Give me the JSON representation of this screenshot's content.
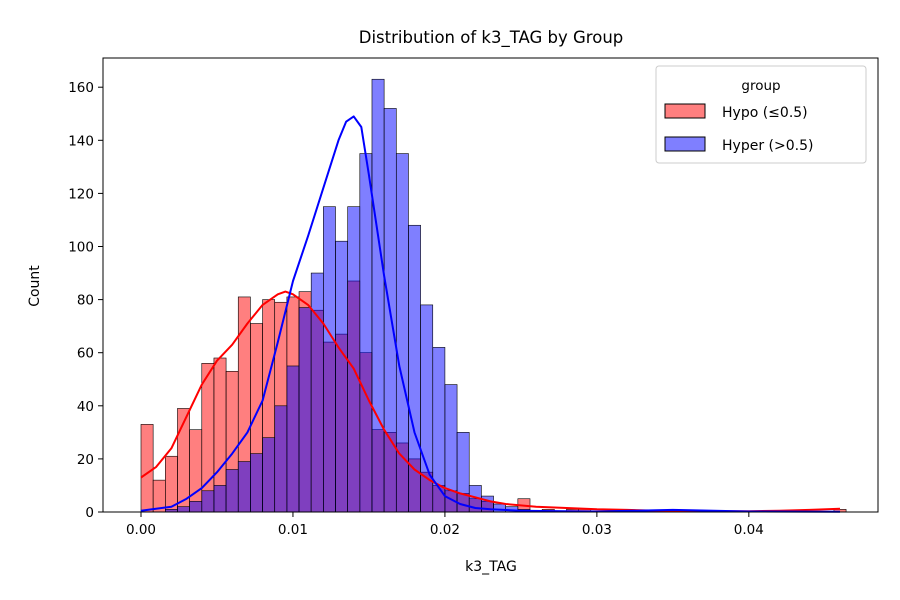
{
  "chart_data": {
    "type": "histogram",
    "title": "Distribution of k3_TAG by Group",
    "xlabel": "k3_TAG",
    "ylabel": "Count",
    "xlim": [
      -0.0025,
      0.0485
    ],
    "ylim": [
      0,
      171
    ],
    "x_ticks": [
      0.0,
      0.01,
      0.02,
      0.03,
      0.04
    ],
    "x_tick_labels": [
      "0.00",
      "0.01",
      "0.02",
      "0.03",
      "0.04"
    ],
    "y_ticks": [
      0,
      20,
      40,
      60,
      80,
      100,
      120,
      140,
      160
    ],
    "y_tick_labels": [
      "0",
      "20",
      "40",
      "60",
      "80",
      "100",
      "120",
      "140",
      "160"
    ],
    "bin_start": 0.0,
    "bin_width": 0.0008,
    "grid": false,
    "legend": {
      "title": "group",
      "placement": "top-right"
    },
    "series": [
      {
        "name": "Hypo (≤0.5)",
        "color": "#ff0000",
        "fill_alpha": 0.5,
        "counts": [
          33,
          12,
          21,
          39,
          31,
          56,
          58,
          53,
          81,
          71,
          80,
          79,
          81,
          83,
          76,
          64,
          67,
          87,
          60,
          31,
          30,
          26,
          20,
          15,
          10,
          8,
          7,
          5,
          4,
          0,
          0,
          5,
          0,
          1,
          0,
          1,
          1,
          0,
          0,
          0,
          0,
          0,
          0,
          0,
          0,
          0,
          0,
          0,
          0,
          0,
          0,
          0,
          0,
          0,
          0,
          0,
          0,
          1
        ],
        "kde": {
          "x": [
            0.0,
            0.001,
            0.002,
            0.003,
            0.004,
            0.005,
            0.006,
            0.007,
            0.008,
            0.009,
            0.0095,
            0.01,
            0.011,
            0.012,
            0.013,
            0.014,
            0.015,
            0.016,
            0.017,
            0.018,
            0.019,
            0.02,
            0.021,
            0.022,
            0.023,
            0.024,
            0.026,
            0.028,
            0.03,
            0.032,
            0.034,
            0.036,
            0.038,
            0.04,
            0.042,
            0.044,
            0.046
          ],
          "y": [
            13,
            17,
            24,
            36,
            48,
            57,
            63,
            71,
            78,
            82,
            83,
            82,
            78,
            71,
            62,
            54,
            42,
            31,
            22,
            16,
            12,
            9,
            7,
            5.5,
            4,
            3,
            2,
            1.5,
            1,
            0.8,
            0.5,
            0.3,
            0.3,
            0.3,
            0.5,
            0.8,
            1.2
          ]
        }
      },
      {
        "name": "Hyper (>0.5)",
        "color": "#0000ff",
        "fill_alpha": 0.5,
        "counts": [
          0,
          0,
          1,
          2,
          4,
          8,
          10,
          16,
          19,
          22,
          28,
          40,
          55,
          77,
          90,
          115,
          102,
          115,
          135,
          163,
          152,
          135,
          108,
          78,
          62,
          48,
          30,
          10,
          6,
          3,
          2,
          1,
          0,
          0,
          0,
          0,
          0,
          0,
          0,
          0,
          0,
          0,
          0,
          0,
          0,
          0,
          0,
          0,
          0,
          0,
          0,
          0,
          0,
          0,
          0,
          0,
          0,
          0
        ],
        "kde": {
          "x": [
            0.0,
            0.002,
            0.003,
            0.004,
            0.005,
            0.006,
            0.007,
            0.008,
            0.009,
            0.01,
            0.011,
            0.012,
            0.013,
            0.0135,
            0.014,
            0.0145,
            0.015,
            0.016,
            0.017,
            0.018,
            0.019,
            0.02,
            0.021,
            0.022,
            0.023,
            0.025,
            0.028,
            0.03,
            0.035,
            0.04,
            0.046
          ],
          "y": [
            0.5,
            2,
            5,
            9,
            15,
            22,
            30,
            42,
            64,
            87,
            104,
            122,
            140,
            147,
            149,
            145,
            127,
            89,
            55,
            30,
            14,
            6,
            3,
            1.5,
            1,
            0.5,
            0.3,
            0.2,
            0.8,
            0.2,
            0.1
          ]
        }
      }
    ]
  }
}
